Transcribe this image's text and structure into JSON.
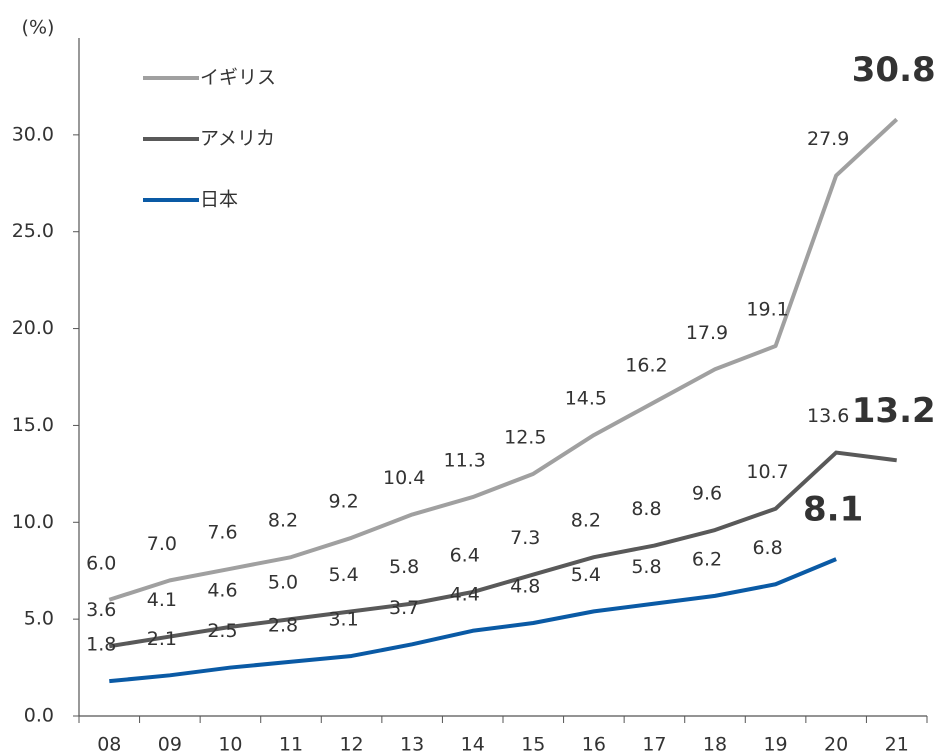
{
  "chart_data": {
    "type": "line",
    "y_label": "(%)",
    "categories": [
      "08",
      "09",
      "10",
      "11",
      "12",
      "13",
      "14",
      "15",
      "16",
      "17",
      "18",
      "19",
      "20",
      "21"
    ],
    "ylim": [
      0,
      35
    ],
    "yticks": [
      {
        "value": 0,
        "label": "0.0"
      },
      {
        "value": 5,
        "label": "5.0"
      },
      {
        "value": 10,
        "label": "10.0"
      },
      {
        "value": 15,
        "label": "15.0"
      },
      {
        "value": 20,
        "label": "20.0"
      },
      {
        "value": 25,
        "label": "25.0"
      },
      {
        "value": 30,
        "label": "30.0"
      }
    ],
    "series": [
      {
        "name": "イギリス",
        "color": "#a0a0a0",
        "values": [
          6,
          7,
          7.6,
          8.2,
          9.2,
          10.4,
          11.3,
          12.5,
          14.5,
          16.2,
          17.9,
          19.1,
          27.9,
          30.8
        ],
        "value_labels": [
          "6.0",
          "7.0",
          "7.6",
          "8.2",
          "9.2",
          "10.4",
          "11.3",
          "12.5",
          "14.5",
          "16.2",
          "17.9",
          "19.1",
          "27.9",
          "30.8"
        ]
      },
      {
        "name": "アメリカ",
        "color": "#595959",
        "values": [
          3.6,
          4.1,
          4.6,
          5,
          5.4,
          5.8,
          6.4,
          7.3,
          8.2,
          8.8,
          9.6,
          10.7,
          13.6,
          13.2
        ],
        "value_labels": [
          "3.6",
          "4.1",
          "4.6",
          "5.0",
          "5.4",
          "5.8",
          "6.4",
          "7.3",
          "8.2",
          "8.8",
          "9.6",
          "10.7",
          "13.6",
          "13.2"
        ]
      },
      {
        "name": "日本",
        "color": "#0a5aa5",
        "values": [
          1.8,
          2.1,
          2.5,
          2.8,
          3.1,
          3.7,
          4.4,
          4.8,
          5.4,
          5.8,
          6.2,
          6.8,
          8.1,
          null
        ],
        "value_labels": [
          "1.8",
          "2.1",
          "2.5",
          "2.8",
          "3.1",
          "3.7",
          "4.4",
          "4.8",
          "5.4",
          "5.8",
          "6.2",
          "6.8",
          "8.1",
          null
        ]
      }
    ]
  }
}
